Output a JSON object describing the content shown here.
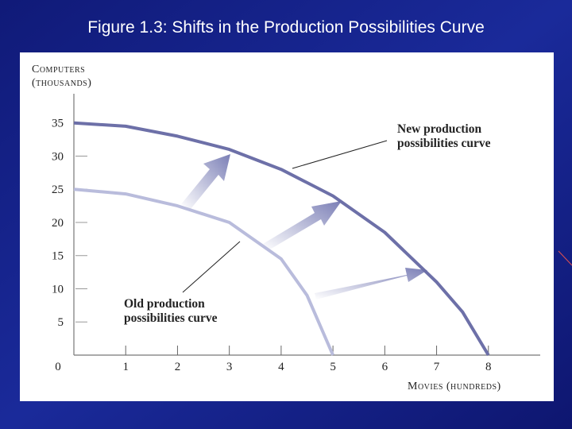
{
  "title": "Figure 1.3: Shifts in the Production Possibilities Curve",
  "chart_data": {
    "type": "line",
    "x_label": "Movies (hundreds)",
    "y_label": [
      "Computers",
      "(thousands)"
    ],
    "x": [
      0,
      1,
      2,
      3,
      4,
      4.5,
      5,
      6,
      7,
      7.5,
      8
    ],
    "series": [
      {
        "name": "New production possibilities curve",
        "color": "#6d70a8",
        "values": [
          35,
          34.5,
          33,
          31,
          28,
          26,
          24,
          18.5,
          11,
          6.5,
          0
        ]
      },
      {
        "name": "Old production possibilities curve",
        "color": "#b9bcdc",
        "values": [
          25,
          24.3,
          22.5,
          20,
          14.5,
          9,
          0,
          null,
          null,
          null,
          null
        ]
      }
    ],
    "annotations": [
      {
        "lines": [
          "New production",
          "possibilities curve"
        ]
      },
      {
        "lines": [
          "Old production",
          "possibilities curve"
        ]
      }
    ],
    "xlim": [
      0,
      9
    ],
    "ylim": [
      0,
      39.4
    ],
    "xticks": [
      0,
      1,
      2,
      3,
      4,
      5,
      6,
      7,
      8
    ],
    "yticks": [
      5,
      10,
      15,
      20,
      25,
      30,
      35
    ]
  }
}
